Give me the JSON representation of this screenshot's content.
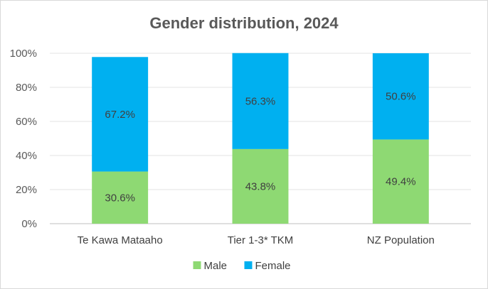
{
  "chart_data": {
    "type": "bar",
    "stacked": true,
    "title": "Gender distribution, 2024",
    "xlabel": "",
    "ylabel": "",
    "ylim": [
      0,
      100
    ],
    "yticks": [
      "0%",
      "20%",
      "40%",
      "60%",
      "80%",
      "100%"
    ],
    "categories": [
      "Te Kawa Mataaho",
      "Tier 1-3* TKM",
      "NZ Population"
    ],
    "series": [
      {
        "name": "Male",
        "values": [
          30.6,
          43.8,
          49.4
        ],
        "labels": [
          "30.6%",
          "43.8%",
          "49.4%"
        ],
        "color": "#8ed973"
      },
      {
        "name": "Female",
        "values": [
          67.2,
          56.3,
          50.6
        ],
        "labels": [
          "67.2%",
          "56.3%",
          "50.6%"
        ],
        "color": "#00b0f0"
      }
    ],
    "grid": true,
    "legend": "bottom"
  }
}
